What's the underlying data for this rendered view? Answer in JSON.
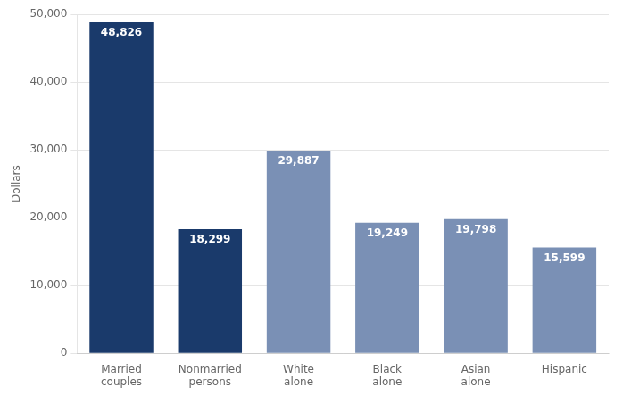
{
  "chart_data": {
    "type": "bar",
    "categories": [
      "Married\ncouples",
      "Nonmarried\npersons",
      "White\nalone",
      "Black\nalone",
      "Asian\nalone",
      "Hispanic"
    ],
    "values": [
      48826,
      18299,
      29887,
      19249,
      19798,
      15599
    ],
    "value_labels": [
      "48,826",
      "18,299",
      "29,887",
      "19,249",
      "19,798",
      "15,599"
    ],
    "data_labels": true,
    "colors": [
      "#1a3a6b",
      "#1a3a6b",
      "#7a90b5",
      "#7a90b5",
      "#7a90b5",
      "#7a90b5"
    ],
    "ylabel": "Dollars",
    "ylim": [
      0,
      50000
    ],
    "yticks": [
      0,
      {
        "value": 10000,
        "label": "10,000"
      },
      {
        "value": 20000,
        "label": "20,000"
      },
      {
        "value": 30000,
        "label": "30,000"
      },
      {
        "value": 40000,
        "label": "40,000"
      },
      {
        "value": 50000,
        "label": "50,000"
      }
    ],
    "grid": true
  }
}
